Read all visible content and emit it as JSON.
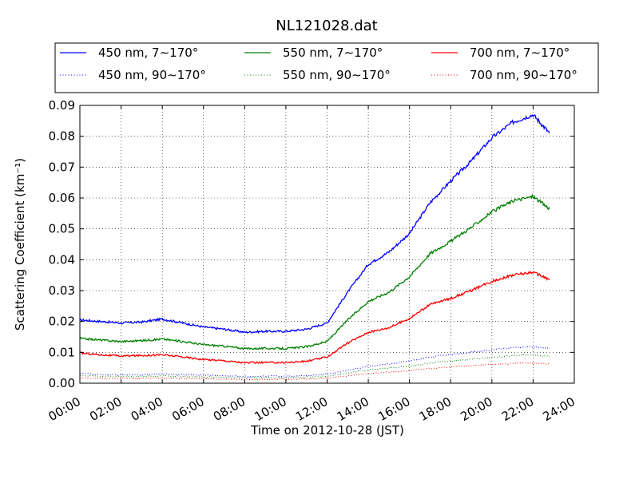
{
  "chart_data": {
    "type": "line",
    "title": "NL121028.dat",
    "xlabel": "Time on 2012-10-28 (JST)",
    "ylabel": "Scattering Coefficient (km⁻¹)",
    "x_ticks": [
      "00:00",
      "02:00",
      "04:00",
      "06:00",
      "08:00",
      "10:00",
      "12:00",
      "14:00",
      "16:00",
      "18:00",
      "20:00",
      "22:00",
      "24:00"
    ],
    "y_ticks": [
      "0.00",
      "0.01",
      "0.02",
      "0.03",
      "0.04",
      "0.05",
      "0.06",
      "0.07",
      "0.08",
      "0.09"
    ],
    "xlim_hours": [
      0,
      24
    ],
    "ylim": [
      0,
      0.09
    ],
    "grid": true,
    "legend_position": "top (above plot), 3 columns",
    "x_hours": [
      0,
      1,
      2,
      3,
      4,
      5,
      6,
      7,
      8,
      9,
      10,
      11,
      12,
      13,
      14,
      15,
      16,
      17,
      18,
      19,
      20,
      21,
      22,
      22.8
    ],
    "series": [
      {
        "name": "450 nm, 7∼170°",
        "color": "#0000ff",
        "style": "solid",
        "values": [
          0.0205,
          0.02,
          0.0195,
          0.0198,
          0.0208,
          0.0195,
          0.0182,
          0.0175,
          0.0165,
          0.0168,
          0.0168,
          0.0175,
          0.0195,
          0.0295,
          0.0385,
          0.0425,
          0.0485,
          0.0585,
          0.0655,
          0.072,
          0.0795,
          0.0845,
          0.087,
          0.081
        ]
      },
      {
        "name": "450 nm, 90∼170°",
        "color": "#0000ff",
        "style": "dotted",
        "values": [
          0.0032,
          0.0028,
          0.0027,
          0.0028,
          0.003,
          0.0028,
          0.0026,
          0.0024,
          0.0022,
          0.0023,
          0.0023,
          0.0025,
          0.003,
          0.0042,
          0.0055,
          0.0062,
          0.0072,
          0.0085,
          0.0093,
          0.01,
          0.0108,
          0.0115,
          0.0118,
          0.0112
        ]
      },
      {
        "name": "550 nm, 7∼170°",
        "color": "#008000",
        "style": "solid",
        "values": [
          0.0145,
          0.014,
          0.0135,
          0.0138,
          0.0143,
          0.0135,
          0.0125,
          0.012,
          0.0112,
          0.0113,
          0.0112,
          0.0118,
          0.0135,
          0.0205,
          0.0265,
          0.0295,
          0.0345,
          0.042,
          0.046,
          0.0505,
          0.0555,
          0.059,
          0.0605,
          0.0565
        ]
      },
      {
        "name": "550 nm, 90∼170°",
        "color": "#008000",
        "style": "dotted",
        "values": [
          0.0025,
          0.0022,
          0.0021,
          0.0022,
          0.0024,
          0.0022,
          0.002,
          0.0019,
          0.0017,
          0.0018,
          0.0018,
          0.0019,
          0.0023,
          0.0033,
          0.0043,
          0.0049,
          0.0056,
          0.0065,
          0.0072,
          0.0078,
          0.0084,
          0.0089,
          0.0092,
          0.0087
        ]
      },
      {
        "name": "700 nm, 7∼170°",
        "color": "#ff0000",
        "style": "solid",
        "values": [
          0.0098,
          0.0092,
          0.0088,
          0.009,
          0.0092,
          0.0085,
          0.0077,
          0.0073,
          0.0066,
          0.0067,
          0.0067,
          0.0071,
          0.0085,
          0.013,
          0.0165,
          0.018,
          0.021,
          0.0255,
          0.0275,
          0.03,
          0.033,
          0.035,
          0.036,
          0.0335
        ]
      },
      {
        "name": "700 nm, 90∼170°",
        "color": "#ff0000",
        "style": "dotted",
        "values": [
          0.0018,
          0.0016,
          0.0015,
          0.0016,
          0.0017,
          0.0016,
          0.0014,
          0.0013,
          0.0012,
          0.0013,
          0.0013,
          0.0014,
          0.0017,
          0.0024,
          0.0031,
          0.0036,
          0.0041,
          0.0048,
          0.0053,
          0.0057,
          0.0061,
          0.0064,
          0.0066,
          0.0063
        ]
      }
    ]
  }
}
